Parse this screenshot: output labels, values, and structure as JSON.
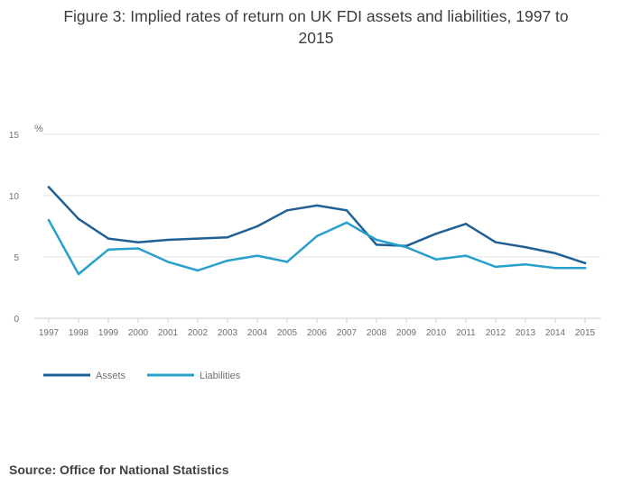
{
  "title": {
    "line1": "Figure 3: Implied rates of return on UK FDI assets and liabilities, 1997 to",
    "line2": "2015"
  },
  "source": "Source: Office for National Statistics",
  "chart_data": {
    "type": "line",
    "title": "Figure 3: Implied rates of return on UK FDI assets and liabilities, 1997 to 2015",
    "xlabel": "",
    "ylabel": "%",
    "ylim": [
      0,
      15
    ],
    "yticks": [
      0,
      5,
      10,
      15
    ],
    "grid": true,
    "legend_position": "bottom-left",
    "categories": [
      "1997",
      "1998",
      "1999",
      "2000",
      "2001",
      "2002",
      "2003",
      "2004",
      "2005",
      "2006",
      "2007",
      "2008",
      "2009",
      "2010",
      "2011",
      "2012",
      "2013",
      "2014",
      "2015"
    ],
    "series": [
      {
        "name": "Assets",
        "color": "#206095",
        "values": [
          10.7,
          8.1,
          6.5,
          6.2,
          6.4,
          6.5,
          6.6,
          7.5,
          8.8,
          9.2,
          8.8,
          6.0,
          5.9,
          6.9,
          7.7,
          6.2,
          5.8,
          5.3,
          4.5
        ]
      },
      {
        "name": "Liabilities",
        "color": "#27a0cc",
        "values": [
          8.0,
          3.6,
          5.6,
          5.7,
          4.6,
          3.9,
          4.7,
          5.1,
          4.6,
          6.7,
          7.8,
          6.4,
          5.8,
          4.8,
          5.1,
          4.2,
          4.4,
          4.1,
          4.1
        ]
      }
    ]
  },
  "colors": {
    "grid": "#e6e6e6",
    "axis": "#cccccc"
  }
}
